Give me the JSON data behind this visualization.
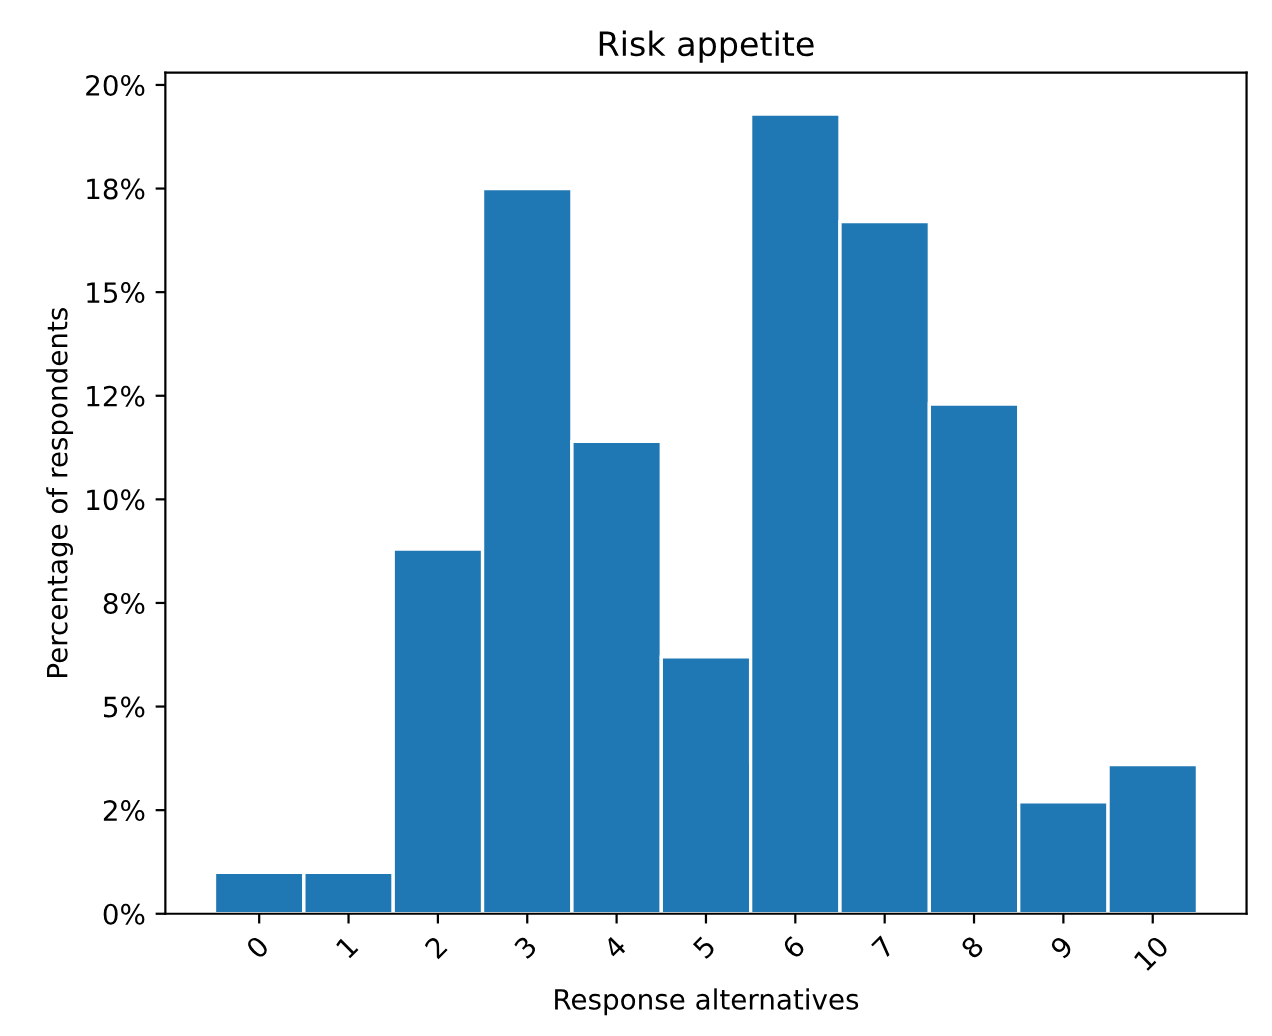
{
  "chart_data": {
    "type": "bar",
    "title": "Risk appetite",
    "xlabel": "Response alternatives",
    "ylabel": "Percentage of respondents",
    "categories": [
      "0",
      "1",
      "2",
      "3",
      "4",
      "5",
      "6",
      "7",
      "8",
      "9",
      "10"
    ],
    "values": [
      1.0,
      1.0,
      8.8,
      17.5,
      11.4,
      6.2,
      19.3,
      16.7,
      12.3,
      2.7,
      3.6
    ],
    "color": "#1f77b4",
    "ylim": [
      0,
      20.3
    ],
    "yticks": [
      {
        "value": 0,
        "label": "0%"
      },
      {
        "value": 2.5,
        "label": "2%"
      },
      {
        "value": 5,
        "label": "5%"
      },
      {
        "value": 7.5,
        "label": "8%"
      },
      {
        "value": 10,
        "label": "10%"
      },
      {
        "value": 12.5,
        "label": "12%"
      },
      {
        "value": 15,
        "label": "15%"
      },
      {
        "value": 17.5,
        "label": "18%"
      },
      {
        "value": 20,
        "label": "20%"
      }
    ],
    "grid": false,
    "legend": false
  }
}
